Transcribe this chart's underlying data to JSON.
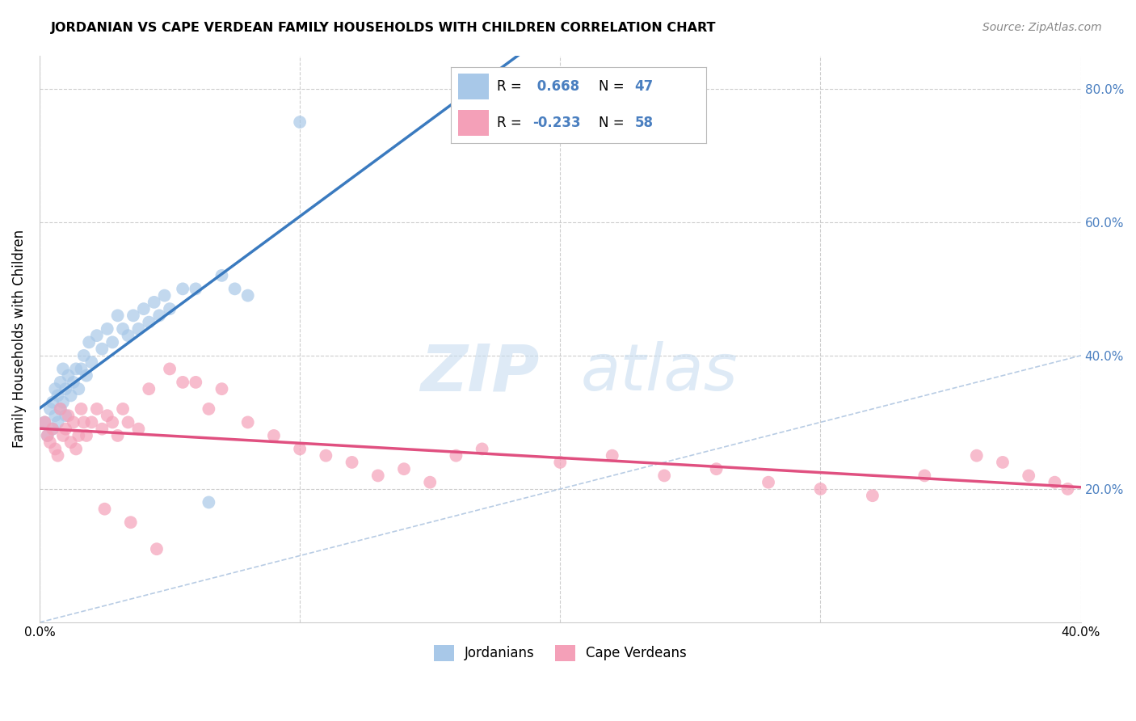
{
  "title": "JORDANIAN VS CAPE VERDEAN FAMILY HOUSEHOLDS WITH CHILDREN CORRELATION CHART",
  "source": "Source: ZipAtlas.com",
  "ylabel": "Family Households with Children",
  "xlim": [
    0.0,
    0.4
  ],
  "ylim": [
    0.0,
    0.85
  ],
  "x_ticks": [
    0.0,
    0.1,
    0.2,
    0.3,
    0.4
  ],
  "x_tick_labels": [
    "0.0%",
    "",
    "",
    "",
    "40.0%"
  ],
  "y_ticks": [
    0.2,
    0.4,
    0.6,
    0.8
  ],
  "y_tick_labels": [
    "20.0%",
    "40.0%",
    "60.0%",
    "80.0%"
  ],
  "jordan_color": "#a8c8e8",
  "cv_color": "#f4a0b8",
  "jordan_line_color": "#3a7abf",
  "cv_line_color": "#e05080",
  "diag_color": "#b8cce4",
  "jordan_R": 0.668,
  "jordan_N": 47,
  "cv_R": -0.233,
  "cv_N": 58,
  "background_color": "#ffffff",
  "grid_color": "#c8c8c8",
  "label_color_blue": "#4a7fc0",
  "jordan_scatter_x": [
    0.002,
    0.003,
    0.004,
    0.005,
    0.005,
    0.006,
    0.006,
    0.007,
    0.007,
    0.008,
    0.008,
    0.009,
    0.009,
    0.01,
    0.01,
    0.011,
    0.012,
    0.013,
    0.014,
    0.015,
    0.016,
    0.017,
    0.018,
    0.019,
    0.02,
    0.022,
    0.024,
    0.026,
    0.028,
    0.03,
    0.032,
    0.034,
    0.036,
    0.038,
    0.04,
    0.042,
    0.044,
    0.046,
    0.048,
    0.05,
    0.055,
    0.06,
    0.065,
    0.07,
    0.075,
    0.08,
    0.1
  ],
  "jordan_scatter_y": [
    0.3,
    0.28,
    0.32,
    0.29,
    0.33,
    0.31,
    0.35,
    0.3,
    0.34,
    0.32,
    0.36,
    0.33,
    0.38,
    0.31,
    0.35,
    0.37,
    0.34,
    0.36,
    0.38,
    0.35,
    0.38,
    0.4,
    0.37,
    0.42,
    0.39,
    0.43,
    0.41,
    0.44,
    0.42,
    0.46,
    0.44,
    0.43,
    0.46,
    0.44,
    0.47,
    0.45,
    0.48,
    0.46,
    0.49,
    0.47,
    0.5,
    0.5,
    0.18,
    0.52,
    0.5,
    0.49,
    0.75
  ],
  "cv_scatter_x": [
    0.002,
    0.003,
    0.004,
    0.005,
    0.006,
    0.007,
    0.008,
    0.009,
    0.01,
    0.011,
    0.012,
    0.013,
    0.014,
    0.015,
    0.016,
    0.017,
    0.018,
    0.02,
    0.022,
    0.024,
    0.026,
    0.028,
    0.03,
    0.032,
    0.034,
    0.038,
    0.042,
    0.05,
    0.055,
    0.06,
    0.065,
    0.07,
    0.08,
    0.09,
    0.1,
    0.11,
    0.12,
    0.13,
    0.14,
    0.15,
    0.16,
    0.17,
    0.2,
    0.22,
    0.24,
    0.26,
    0.28,
    0.3,
    0.32,
    0.34,
    0.36,
    0.37,
    0.38,
    0.39,
    0.395,
    0.025,
    0.035,
    0.045
  ],
  "cv_scatter_y": [
    0.3,
    0.28,
    0.27,
    0.29,
    0.26,
    0.25,
    0.32,
    0.28,
    0.29,
    0.31,
    0.27,
    0.3,
    0.26,
    0.28,
    0.32,
    0.3,
    0.28,
    0.3,
    0.32,
    0.29,
    0.31,
    0.3,
    0.28,
    0.32,
    0.3,
    0.29,
    0.35,
    0.38,
    0.36,
    0.36,
    0.32,
    0.35,
    0.3,
    0.28,
    0.26,
    0.25,
    0.24,
    0.22,
    0.23,
    0.21,
    0.25,
    0.26,
    0.24,
    0.25,
    0.22,
    0.23,
    0.21,
    0.2,
    0.19,
    0.22,
    0.25,
    0.24,
    0.22,
    0.21,
    0.2,
    0.17,
    0.15,
    0.11
  ]
}
